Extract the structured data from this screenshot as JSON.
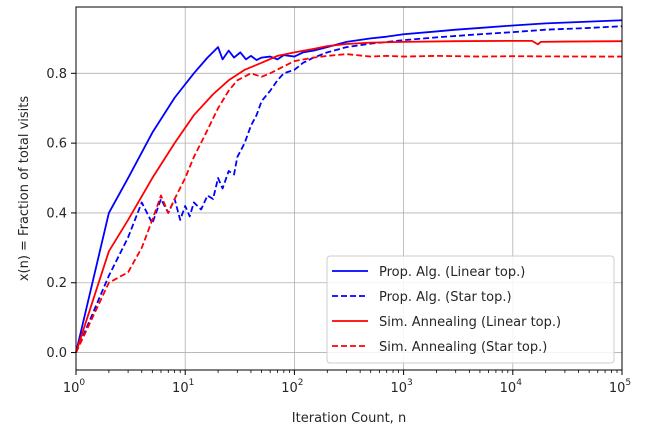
{
  "chart_data": {
    "type": "line",
    "xscale": "log",
    "xlim": [
      1,
      100000
    ],
    "ylim": [
      -0.05,
      0.99
    ],
    "xlabel": "Iteration Count, n",
    "ylabel": "x(n) = Fraction of total visits",
    "xticks": [
      {
        "value": 1,
        "base": "10",
        "exp": "0"
      },
      {
        "value": 10,
        "base": "10",
        "exp": "1"
      },
      {
        "value": 100,
        "base": "10",
        "exp": "2"
      },
      {
        "value": 1000,
        "base": "10",
        "exp": "3"
      },
      {
        "value": 10000,
        "base": "10",
        "exp": "4"
      },
      {
        "value": 100000,
        "base": "10",
        "exp": "5"
      }
    ],
    "yticks": [
      {
        "value": 0.0,
        "label": "0.0"
      },
      {
        "value": 0.2,
        "label": "0.2"
      },
      {
        "value": 0.4,
        "label": "0.4"
      },
      {
        "value": 0.6,
        "label": "0.6"
      },
      {
        "value": 0.8,
        "label": "0.8"
      }
    ],
    "grid": true,
    "legend_position": "bottom-right",
    "series": [
      {
        "name": "Prop. Alg. (Linear top.)",
        "color": "#0000ff",
        "style": "solid",
        "points": [
          [
            1,
            0.0
          ],
          [
            2,
            0.4
          ],
          [
            3,
            0.5
          ],
          [
            5,
            0.63
          ],
          [
            8,
            0.73
          ],
          [
            12,
            0.8
          ],
          [
            16,
            0.845
          ],
          [
            20,
            0.875
          ],
          [
            22,
            0.84
          ],
          [
            25,
            0.865
          ],
          [
            28,
            0.845
          ],
          [
            32,
            0.86
          ],
          [
            36,
            0.84
          ],
          [
            40,
            0.85
          ],
          [
            45,
            0.838
          ],
          [
            50,
            0.845
          ],
          [
            60,
            0.848
          ],
          [
            70,
            0.84
          ],
          [
            80,
            0.852
          ],
          [
            100,
            0.848
          ],
          [
            120,
            0.86
          ],
          [
            150,
            0.865
          ],
          [
            200,
            0.875
          ],
          [
            300,
            0.89
          ],
          [
            500,
            0.9
          ],
          [
            700,
            0.905
          ],
          [
            1000,
            0.912
          ],
          [
            2000,
            0.92
          ],
          [
            3000,
            0.925
          ],
          [
            5000,
            0.93
          ],
          [
            10000,
            0.937
          ],
          [
            20000,
            0.943
          ],
          [
            50000,
            0.948
          ],
          [
            100000,
            0.952
          ]
        ]
      },
      {
        "name": "Prop. Alg. (Star top.)",
        "color": "#0000ff",
        "style": "dashed",
        "points": [
          [
            1,
            0.0
          ],
          [
            2,
            0.22
          ],
          [
            3,
            0.33
          ],
          [
            4,
            0.43
          ],
          [
            5,
            0.37
          ],
          [
            6,
            0.44
          ],
          [
            7,
            0.4
          ],
          [
            8,
            0.44
          ],
          [
            9,
            0.38
          ],
          [
            10,
            0.42
          ],
          [
            11,
            0.39
          ],
          [
            12,
            0.43
          ],
          [
            14,
            0.41
          ],
          [
            16,
            0.45
          ],
          [
            18,
            0.44
          ],
          [
            20,
            0.5
          ],
          [
            22,
            0.47
          ],
          [
            25,
            0.52
          ],
          [
            28,
            0.51
          ],
          [
            30,
            0.56
          ],
          [
            35,
            0.6
          ],
          [
            40,
            0.65
          ],
          [
            45,
            0.68
          ],
          [
            50,
            0.72
          ],
          [
            60,
            0.75
          ],
          [
            70,
            0.78
          ],
          [
            80,
            0.8
          ],
          [
            100,
            0.81
          ],
          [
            120,
            0.83
          ],
          [
            150,
            0.845
          ],
          [
            200,
            0.86
          ],
          [
            300,
            0.875
          ],
          [
            500,
            0.885
          ],
          [
            1000,
            0.895
          ],
          [
            2000,
            0.903
          ],
          [
            5000,
            0.912
          ],
          [
            10000,
            0.918
          ],
          [
            20000,
            0.925
          ],
          [
            50000,
            0.93
          ],
          [
            100000,
            0.935
          ]
        ]
      },
      {
        "name": "Sim. Annealing (Linear top.)",
        "color": "#ff0000",
        "style": "solid",
        "points": [
          [
            1,
            0.0
          ],
          [
            2,
            0.29
          ],
          [
            3,
            0.38
          ],
          [
            5,
            0.5
          ],
          [
            8,
            0.6
          ],
          [
            12,
            0.68
          ],
          [
            18,
            0.74
          ],
          [
            25,
            0.78
          ],
          [
            35,
            0.81
          ],
          [
            50,
            0.83
          ],
          [
            70,
            0.85
          ],
          [
            100,
            0.86
          ],
          [
            150,
            0.87
          ],
          [
            200,
            0.878
          ],
          [
            300,
            0.884
          ],
          [
            500,
            0.888
          ],
          [
            1000,
            0.89
          ],
          [
            3000,
            0.892
          ],
          [
            10000,
            0.893
          ],
          [
            15000,
            0.893
          ],
          [
            17000,
            0.883
          ],
          [
            18000,
            0.89
          ],
          [
            30000,
            0.891
          ],
          [
            100000,
            0.892
          ]
        ]
      },
      {
        "name": "Sim. Annealing (Star top.)",
        "color": "#ff0000",
        "style": "dashed",
        "points": [
          [
            1,
            0.0
          ],
          [
            2,
            0.2
          ],
          [
            3,
            0.23
          ],
          [
            4,
            0.3
          ],
          [
            5,
            0.38
          ],
          [
            6,
            0.45
          ],
          [
            7,
            0.4
          ],
          [
            8,
            0.44
          ],
          [
            10,
            0.5
          ],
          [
            12,
            0.56
          ],
          [
            15,
            0.62
          ],
          [
            20,
            0.7
          ],
          [
            25,
            0.75
          ],
          [
            30,
            0.78
          ],
          [
            40,
            0.8
          ],
          [
            50,
            0.79
          ],
          [
            60,
            0.8
          ],
          [
            80,
            0.82
          ],
          [
            100,
            0.835
          ],
          [
            150,
            0.845
          ],
          [
            200,
            0.85
          ],
          [
            300,
            0.855
          ],
          [
            500,
            0.848
          ],
          [
            700,
            0.85
          ],
          [
            1000,
            0.848
          ],
          [
            2000,
            0.85
          ],
          [
            5000,
            0.848
          ],
          [
            10000,
            0.849
          ],
          [
            50000,
            0.848
          ],
          [
            100000,
            0.848
          ]
        ]
      }
    ]
  }
}
